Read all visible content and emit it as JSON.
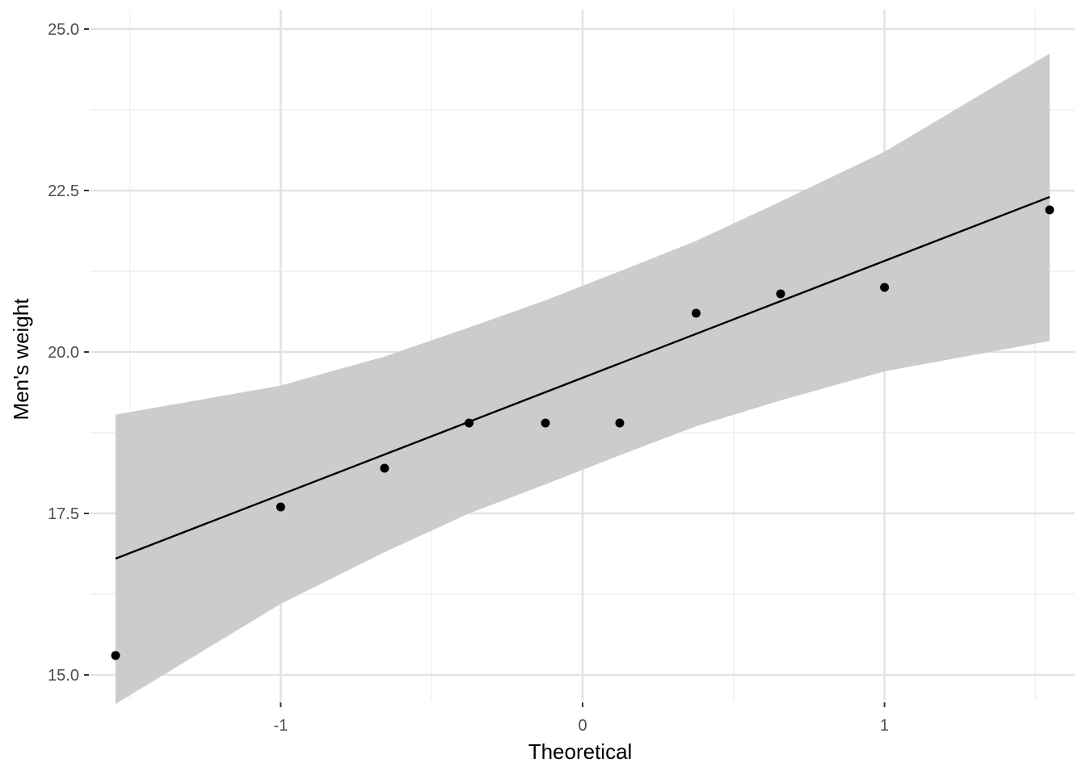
{
  "chart_data": {
    "type": "scatter",
    "subtype": "qq-plot",
    "title": "",
    "xlabel": "Theoretical",
    "ylabel": "Men's weight",
    "xlim": [
      -1.63,
      1.63
    ],
    "ylim": [
      14.6,
      25.3
    ],
    "x_ticks": [
      -1,
      0,
      1
    ],
    "x_tick_labels": [
      "-1",
      "0",
      "1"
    ],
    "y_ticks": [
      15.0,
      17.5,
      20.0,
      22.5,
      25.0
    ],
    "y_tick_labels": [
      "15.0",
      "17.5",
      "20.0",
      "22.5",
      "25.0"
    ],
    "grid": true,
    "legend": "none",
    "points": {
      "x": [
        -1.547,
        -1.0,
        -0.656,
        -0.376,
        -0.123,
        0.123,
        0.376,
        0.656,
        1.0,
        1.547
      ],
      "y": [
        15.3,
        17.6,
        18.2,
        18.9,
        18.9,
        18.9,
        20.6,
        20.9,
        21.0,
        22.2
      ]
    },
    "reference_line": {
      "x": [
        -1.547,
        1.547
      ],
      "y": [
        16.8,
        22.4
      ]
    },
    "confidence_band": {
      "x": [
        -1.547,
        -1.0,
        -0.656,
        -0.376,
        -0.123,
        0.123,
        0.376,
        0.656,
        1.0,
        1.547
      ],
      "lower": [
        14.55,
        16.1,
        16.9,
        17.5,
        17.95,
        18.4,
        18.85,
        19.25,
        19.7,
        20.17
      ],
      "upper": [
        19.03,
        19.48,
        19.93,
        20.38,
        20.8,
        21.25,
        21.72,
        22.33,
        23.1,
        24.62
      ]
    },
    "colors": {
      "points": "#000000",
      "line": "#000000",
      "band": "#cccccc",
      "grid_major": "#e3e3e3",
      "grid_minor": "#efefef",
      "tick_label": "#4d4d4d",
      "axis_title": "#000000"
    }
  }
}
